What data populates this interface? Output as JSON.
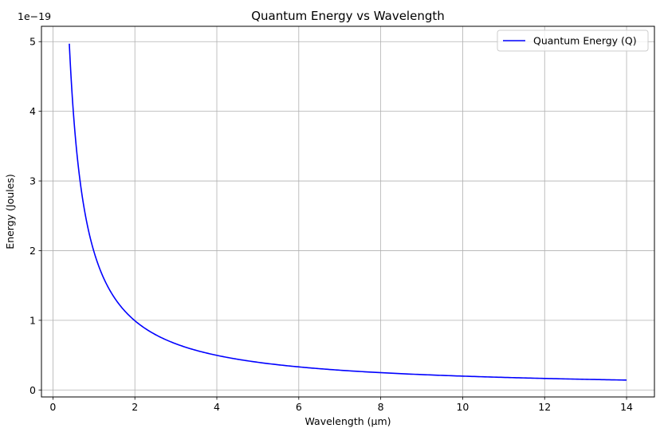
{
  "chart_data": {
    "type": "line",
    "title": "Quantum Energy vs Wavelength",
    "xlabel": "Wavelength (µm)",
    "ylabel": "Energy (Joules)",
    "y_offset_label": "1e−19",
    "y_scale_factor": 1e-19,
    "xlim": [
      -0.28,
      14.68
    ],
    "ylim": [
      -0.1,
      5.22
    ],
    "x_ticks": [
      0,
      2,
      4,
      6,
      8,
      10,
      12,
      14
    ],
    "x_tick_labels": [
      "0",
      "2",
      "4",
      "6",
      "8",
      "10",
      "12",
      "14"
    ],
    "y_ticks": [
      0,
      1,
      2,
      3,
      4,
      5
    ],
    "y_tick_labels": [
      "0",
      "1",
      "2",
      "3",
      "4",
      "5"
    ],
    "grid": true,
    "legend_position": "top-right",
    "series": [
      {
        "name": "Quantum Energy (Q)",
        "color": "#0000ff",
        "x": [
          0.4,
          0.45,
          0.5,
          0.55,
          0.6,
          0.7,
          0.8,
          0.9,
          1.0,
          1.2,
          1.4,
          1.6,
          1.8,
          2.0,
          2.5,
          3.0,
          3.5,
          4.0,
          5.0,
          6.0,
          7.0,
          8.0,
          9.0,
          10.0,
          11.0,
          12.0,
          13.0,
          14.0
        ],
        "y": [
          4.97,
          4.41,
          3.97,
          3.61,
          3.31,
          2.84,
          2.48,
          2.21,
          1.99,
          1.66,
          1.42,
          1.24,
          1.1,
          0.99,
          0.79,
          0.66,
          0.57,
          0.5,
          0.4,
          0.33,
          0.28,
          0.25,
          0.22,
          0.2,
          0.18,
          0.17,
          0.15,
          0.14
        ]
      }
    ]
  }
}
